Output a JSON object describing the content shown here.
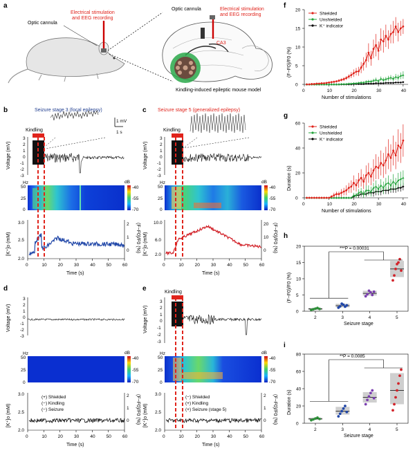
{
  "colors": {
    "shielded": "#e0231b",
    "unshielded": "#22a33a",
    "indicator": "#000000",
    "stage2": "#2f8f3a",
    "stage3": "#2147a8",
    "stage4": "#7b3fb0",
    "stage5": "#d2232a",
    "trace_blue": "#2147a8",
    "trace_red": "#d2232a",
    "stim": "#e0231b"
  },
  "panel_a": {
    "label": "a",
    "optic_cannula": "Optic cannula",
    "stim_label_1": "Electrical stimulation",
    "stim_label_2": "and EEG recording",
    "optic_cannula_right": "Optic cannula",
    "stim_right_1": "Electrical stimulation",
    "stim_right_2": "and EEG recording",
    "region": "CA3",
    "caption": "Kindling-induced epileptic mouse model"
  },
  "panel_b": {
    "label": "b",
    "title": "Seizure stage 3 (focal epilepsy)",
    "kindling": "Kindling",
    "scale_mv": "1 mV",
    "scale_s": "1 s",
    "voltage_label": "Voltage (mV)",
    "hz": "Hz",
    "db": "dB",
    "db_ticks": [
      "-40",
      "-55",
      "-70"
    ],
    "hz_ticks": [
      "50",
      "25",
      "0"
    ],
    "volt_ticks": [
      "3",
      "2",
      "1",
      "0",
      "-1",
      "-2",
      "-3"
    ],
    "k_label": "[K⁺]o (mM)",
    "k_ticks": [
      "3.0",
      "2.5",
      "2.0"
    ],
    "df_ticks": [
      "2",
      "1",
      "0"
    ],
    "df_label": "(F−F0)/F0 (%)",
    "time_label": "Time (s)",
    "time_ticks": [
      "0",
      "10",
      "20",
      "30",
      "40",
      "50",
      "60"
    ]
  },
  "panel_c": {
    "label": "c",
    "title": "Seizure stage 5 (generalized epilepsy)",
    "kindling": "Kindling",
    "voltage_label": "Voltage (mV)",
    "hz": "Hz",
    "db": "dB",
    "db_ticks": [
      "-40",
      "-55",
      "-70"
    ],
    "hz_ticks": [
      "50",
      "25",
      "0"
    ],
    "volt_ticks": [
      "3",
      "2",
      "1",
      "0",
      "-1",
      "-2",
      "-3"
    ],
    "k_label": "[K⁺]o (mM)",
    "k_ticks": [
      "10.0",
      "6.0",
      "2.0"
    ],
    "df_ticks": [
      "20",
      "10",
      "0"
    ],
    "df_label": "(F−F0)/F0 (%)",
    "time_label": "Time (s)",
    "time_ticks": [
      "0",
      "10",
      "20",
      "30",
      "40",
      "50",
      "60"
    ]
  },
  "panel_d": {
    "label": "d",
    "voltage_label": "Voltage (mV)",
    "hz": "Hz",
    "db": "dB",
    "db_ticks": [
      "-40",
      "-55",
      "-70"
    ],
    "hz_ticks": [
      "50",
      "25",
      "0"
    ],
    "volt_ticks": [
      "3",
      "2",
      "1",
      "0",
      "-1",
      "-2",
      "-3"
    ],
    "k_label": "[K⁺]o (mM)",
    "k_ticks": [
      "3.0",
      "2.5",
      "2.0"
    ],
    "df_ticks": [
      "2",
      "1",
      "0"
    ],
    "df_label": "(F−F0)/F0 (%)",
    "time_label": "Time (s)",
    "time_ticks": [
      "0",
      "10",
      "20",
      "30",
      "40",
      "50",
      "60"
    ],
    "legend": [
      "(+)  Shielded",
      "(−)  Kindling",
      "(−)  Seizure"
    ]
  },
  "panel_e": {
    "label": "e",
    "kindling": "Kindling",
    "voltage_label": "Voltage (mV)",
    "hz": "Hz",
    "db": "dB",
    "db_ticks": [
      "-40",
      "-55",
      "-70"
    ],
    "hz_ticks": [
      "50",
      "25",
      "0"
    ],
    "volt_ticks": [
      "3",
      "2",
      "1",
      "0",
      "-1",
      "-2",
      "-3"
    ],
    "k_label": "[K⁺]o (mM)",
    "k_ticks": [
      "3.0",
      "2.5",
      "2.0"
    ],
    "df_ticks": [
      "2",
      "1",
      "0"
    ],
    "df_label": "(F−F0)/F0 (%)",
    "time_label": "Time (s)",
    "time_ticks": [
      "0",
      "10",
      "20",
      "30",
      "40",
      "50",
      "60"
    ],
    "legend": [
      "(−)  Shielded",
      "(+)  Kindling",
      "(+)  Seizure (stage 5)"
    ]
  },
  "panel_f": {
    "label": "f",
    "ylabel": "(F−F0)/F0 (%)",
    "xlabel": "Number of stimulations",
    "yticks": [
      "20",
      "15",
      "10",
      "5",
      "0"
    ],
    "xticks": [
      "0",
      "10",
      "20",
      "30",
      "40"
    ],
    "legend": [
      "Shielded",
      "Unshielded",
      "K⁺ indicator"
    ]
  },
  "panel_g": {
    "label": "g",
    "ylabel": "Duration (s)",
    "xlabel": "Number of stimulations",
    "yticks": [
      "60",
      "40",
      "20",
      "0"
    ],
    "xticks": [
      "0",
      "10",
      "20",
      "30",
      "40"
    ],
    "legend": [
      "Shielded",
      "Unshielded",
      "K⁺ indicator"
    ]
  },
  "panel_h": {
    "label": "h",
    "pvalue": "***P = 0.00031",
    "ylabel": "(F−F0)/F0 (%)",
    "xlabel": "Seizure stage",
    "yticks": [
      "20",
      "15",
      "10",
      "5",
      "0"
    ],
    "xticks": [
      "2",
      "3",
      "4",
      "5"
    ]
  },
  "panel_i": {
    "label": "i",
    "pvalue": "**P = 0.0085",
    "ylabel": "Duration (s)",
    "xlabel": "Seizure stage",
    "yticks": [
      "80",
      "60",
      "40",
      "20",
      "0"
    ],
    "xticks": [
      "2",
      "3",
      "4",
      "5"
    ]
  },
  "chart_data": [
    {
      "type": "line",
      "panel": "f",
      "xlabel": "Number of stimulations",
      "ylabel": "(F−F0)/F0 (%)",
      "xlim": [
        0,
        42
      ],
      "ylim": [
        0,
        20
      ],
      "x": [
        1,
        2,
        3,
        4,
        5,
        6,
        7,
        8,
        9,
        10,
        11,
        12,
        13,
        14,
        15,
        16,
        17,
        18,
        19,
        20,
        21,
        22,
        23,
        24,
        25,
        26,
        27,
        28,
        29,
        30,
        31,
        32,
        33,
        34,
        35,
        36,
        37,
        38,
        39,
        40
      ],
      "series": [
        {
          "name": "Shielded",
          "values": [
            0,
            0,
            0.1,
            0.1,
            0.2,
            0.2,
            0.3,
            0.3,
            0.4,
            0.5,
            0.6,
            0.7,
            0.8,
            1.0,
            1.2,
            1.4,
            1.7,
            2.1,
            2.5,
            3.0,
            3.4,
            3.5,
            4.5,
            5.5,
            6.5,
            8.5,
            7.0,
            9.5,
            10.5,
            9.0,
            12.0,
            11.5,
            13.0,
            12.0,
            13.5,
            14.0,
            15.5,
            14.0,
            15.0,
            15.5
          ],
          "err": [
            0,
            0,
            0.1,
            0.1,
            0.1,
            0.1,
            0.2,
            0.2,
            0.2,
            0.2,
            0.3,
            0.3,
            0.3,
            0.4,
            0.4,
            0.5,
            0.5,
            0.6,
            0.8,
            1.0,
            1.0,
            1.2,
            1.5,
            1.8,
            2.0,
            2.5,
            2.0,
            2.5,
            3.0,
            2.5,
            3.0,
            3.0,
            3.0,
            2.5,
            2.5,
            3.0,
            2.5,
            2.5,
            2.0,
            2.0
          ]
        },
        {
          "name": "Unshielded",
          "values": [
            0,
            0,
            0,
            0,
            0,
            0,
            0,
            0,
            0,
            0,
            0,
            0,
            0,
            0,
            0.1,
            0.1,
            0.1,
            0.2,
            0.2,
            0.3,
            0.3,
            0.4,
            0.5,
            0.5,
            0.7,
            0.8,
            0.8,
            1.0,
            1.2,
            0.9,
            1.5,
            1.2,
            1.4,
            1.6,
            1.8,
            1.5,
            2.0,
            1.8,
            2.3,
            2.5
          ],
          "err": [
            0,
            0,
            0,
            0,
            0,
            0,
            0,
            0,
            0,
            0,
            0,
            0,
            0,
            0,
            0.1,
            0.1,
            0.1,
            0.1,
            0.1,
            0.2,
            0.2,
            0.2,
            0.3,
            0.3,
            0.4,
            0.4,
            0.4,
            0.5,
            0.6,
            0.5,
            0.6,
            0.6,
            0.6,
            0.7,
            0.7,
            0.7,
            0.8,
            0.8,
            0.9,
            1.0
          ]
        },
        {
          "name": "K⁺ indicator",
          "values": [
            0,
            0,
            0,
            0,
            0,
            0,
            0,
            0,
            0,
            0,
            0,
            0,
            0,
            0,
            0,
            0,
            0,
            0,
            0,
            0.1,
            0.1,
            0.1,
            0.1,
            0.1,
            0.2,
            0.2,
            0.2,
            0.2,
            0.3,
            0.3,
            0.3,
            0.3,
            0.4,
            0.4,
            0.4,
            0.4,
            0.5,
            0.5,
            0.5,
            0.6
          ],
          "err": [
            0,
            0,
            0,
            0,
            0,
            0,
            0,
            0,
            0,
            0,
            0,
            0,
            0,
            0,
            0,
            0,
            0,
            0,
            0,
            0.05,
            0.05,
            0.05,
            0.05,
            0.05,
            0.1,
            0.1,
            0.1,
            0.1,
            0.1,
            0.1,
            0.1,
            0.1,
            0.1,
            0.1,
            0.1,
            0.1,
            0.1,
            0.1,
            0.1,
            0.1
          ]
        }
      ]
    },
    {
      "type": "line",
      "panel": "g",
      "xlabel": "Number of stimulations",
      "ylabel": "Duration (s)",
      "xlim": [
        0,
        42
      ],
      "ylim": [
        0,
        60
      ],
      "x": [
        1,
        2,
        3,
        4,
        5,
        6,
        7,
        8,
        9,
        10,
        11,
        12,
        13,
        14,
        15,
        16,
        17,
        18,
        19,
        20,
        21,
        22,
        23,
        24,
        25,
        26,
        27,
        28,
        29,
        30,
        31,
        32,
        33,
        34,
        35,
        36,
        37,
        38,
        39,
        40
      ],
      "series": [
        {
          "name": "Shielded",
          "values": [
            0,
            0,
            0,
            0,
            0,
            0,
            0,
            0,
            0,
            0,
            1,
            2,
            3,
            3,
            4,
            5,
            6,
            8,
            9,
            12,
            10,
            14,
            16,
            13,
            18,
            20,
            17,
            22,
            25,
            24,
            28,
            26,
            30,
            35,
            32,
            38,
            34,
            42,
            40,
            46
          ],
          "err": [
            0,
            0,
            0,
            0,
            0,
            0,
            0,
            0,
            0,
            0,
            1,
            2,
            2,
            2,
            3,
            3,
            4,
            4,
            5,
            6,
            5,
            6,
            7,
            6,
            8,
            8,
            7,
            9,
            10,
            9,
            10,
            10,
            11,
            12,
            11,
            12,
            11,
            13,
            12,
            13
          ]
        },
        {
          "name": "Unshielded",
          "values": [
            0,
            0,
            0,
            0,
            0,
            0,
            0,
            0,
            0,
            0,
            0,
            0,
            0,
            0,
            0,
            0,
            0,
            0,
            0,
            2,
            2,
            4,
            5,
            3,
            6,
            6,
            5,
            8,
            9,
            7,
            10,
            8,
            11,
            12,
            10,
            13,
            11,
            14,
            15,
            16
          ],
          "err": [
            0,
            0,
            0,
            0,
            0,
            0,
            0,
            0,
            0,
            0,
            0,
            0,
            0,
            0,
            0,
            0,
            0,
            0,
            0,
            2,
            2,
            3,
            3,
            3,
            4,
            4,
            4,
            4,
            5,
            4,
            5,
            5,
            5,
            6,
            5,
            6,
            5,
            6,
            6,
            6
          ]
        },
        {
          "name": "K⁺ indicator",
          "values": [
            0,
            0,
            0,
            0,
            0,
            0,
            0,
            0,
            0,
            0,
            0,
            0,
            0,
            0,
            0,
            0,
            0,
            0,
            0,
            1,
            2,
            2,
            3,
            3,
            3,
            4,
            4,
            4,
            5,
            5,
            5,
            6,
            6,
            6,
            7,
            7,
            7,
            8,
            8,
            9
          ],
          "err": [
            0,
            0,
            0,
            0,
            0,
            0,
            0,
            0,
            0,
            0,
            0,
            0,
            0,
            0,
            0,
            0,
            0,
            0,
            0,
            1,
            1,
            2,
            2,
            2,
            2,
            2,
            2,
            3,
            3,
            3,
            3,
            3,
            3,
            3,
            3,
            3,
            3,
            3,
            3,
            3
          ]
        }
      ]
    },
    {
      "type": "scatter",
      "panel": "h",
      "xlabel": "Seizure stage",
      "ylabel": "(F−F0)/F0 (%)",
      "ylim": [
        0,
        20
      ],
      "categories": [
        "2",
        "3",
        "4",
        "5"
      ],
      "groups": [
        {
          "stage": "2",
          "mean": 0.7,
          "box": [
            0.4,
            1.0
          ],
          "points": [
            0.4,
            0.6,
            0.8,
            1.0,
            0.7
          ]
        },
        {
          "stage": "3",
          "mean": 1.7,
          "box": [
            1.2,
            2.3
          ],
          "points": [
            1.1,
            1.5,
            2.3,
            2.0,
            1.4,
            1.8
          ]
        },
        {
          "stage": "4",
          "mean": 5.5,
          "box": [
            4.8,
            6.3
          ],
          "points": [
            4.6,
            5.2,
            6.3,
            5.8,
            5.0,
            6.0
          ]
        },
        {
          "stage": "5",
          "mean": 13,
          "box": [
            10.5,
            15.5
          ],
          "points": [
            9.5,
            11.0,
            13.0,
            14.5,
            15.0,
            16.0,
            12.5
          ]
        }
      ]
    },
    {
      "type": "scatter",
      "panel": "i",
      "xlabel": "Seizure stage",
      "ylabel": "Duration (s)",
      "ylim": [
        0,
        80
      ],
      "categories": [
        "2",
        "3",
        "4",
        "5"
      ],
      "groups": [
        {
          "stage": "2",
          "mean": 5,
          "box": [
            4,
            6.5
          ],
          "points": [
            3.5,
            4.5,
            5.5,
            6.5,
            5.0
          ]
        },
        {
          "stage": "3",
          "mean": 14,
          "box": [
            10,
            19
          ],
          "points": [
            8,
            11,
            14,
            17,
            20,
            13
          ]
        },
        {
          "stage": "4",
          "mean": 30,
          "box": [
            24,
            36
          ],
          "points": [
            22,
            27,
            31,
            35,
            38,
            29
          ]
        },
        {
          "stage": "5",
          "mean": 38,
          "box": [
            22,
            58
          ],
          "points": [
            15,
            22,
            30,
            38,
            46,
            55,
            62
          ]
        }
      ]
    }
  ]
}
